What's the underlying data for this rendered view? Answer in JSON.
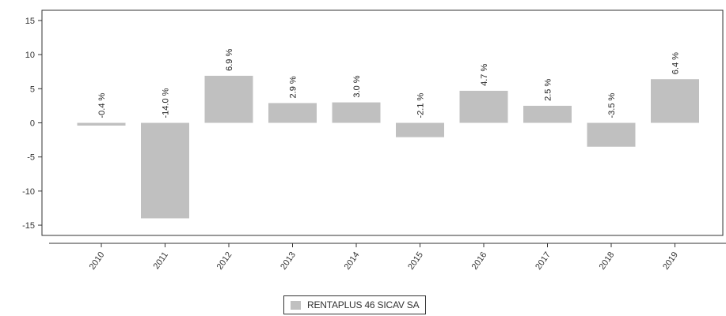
{
  "chart_data": {
    "type": "bar",
    "categories": [
      "2010",
      "2011",
      "2012",
      "2013",
      "2014",
      "2015",
      "2016",
      "2017",
      "2018",
      "2019"
    ],
    "series": [
      {
        "name": "RENTAPLUS 46 SICAV SA",
        "values": [
          -0.4,
          -14.0,
          6.9,
          2.9,
          3.0,
          -2.1,
          4.7,
          2.5,
          -3.5,
          6.4
        ],
        "labels": [
          "-0.4 %",
          "-14.0 %",
          "6.9 %",
          "2.9 %",
          "3.0 %",
          "-2.1 %",
          "4.7 %",
          "2.5 %",
          "-3.5 %",
          "6.4 %"
        ]
      }
    ],
    "yticks": [
      "15",
      "10",
      "5",
      "0",
      "-5",
      "-10",
      "-15"
    ],
    "ylim": [
      -16.5,
      16.5
    ],
    "grid": false,
    "legend_position": "bottom-center",
    "colors": {
      "bar": "#c0c0c0",
      "axis": "#333333"
    }
  }
}
